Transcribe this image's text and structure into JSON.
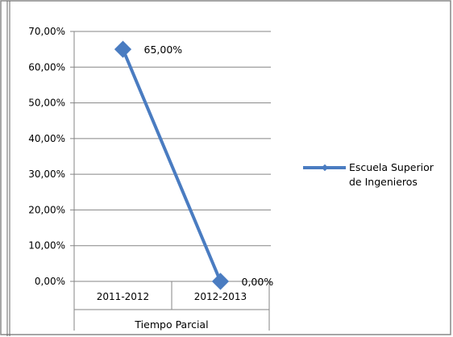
{
  "chart_data": {
    "type": "line",
    "categories": [
      "2011-2012",
      "2012-2013"
    ],
    "series": [
      {
        "name": "Escuela Superior de Ingenieros",
        "values": [
          65.0,
          0.0
        ],
        "data_labels": [
          "65,00%",
          "0,00%"
        ]
      }
    ],
    "legend": {
      "lines": [
        "Escuela Superior",
        "de Ingenieros"
      ],
      "position": "right"
    },
    "ylim": [
      0,
      70
    ],
    "yticks": [
      0,
      10,
      20,
      30,
      40,
      50,
      60,
      70
    ],
    "ytick_labels": [
      "0,00%",
      "10,00%",
      "20,00%",
      "30,00%",
      "40,00%",
      "50,00%",
      "60,00%",
      "70,00%"
    ],
    "xlabel": "Tiempo Parcial",
    "ylabel": "",
    "title": "",
    "grid": true,
    "colors": {
      "series": "#4a7cc1",
      "grid": "#858585",
      "frame": "#888888"
    }
  }
}
